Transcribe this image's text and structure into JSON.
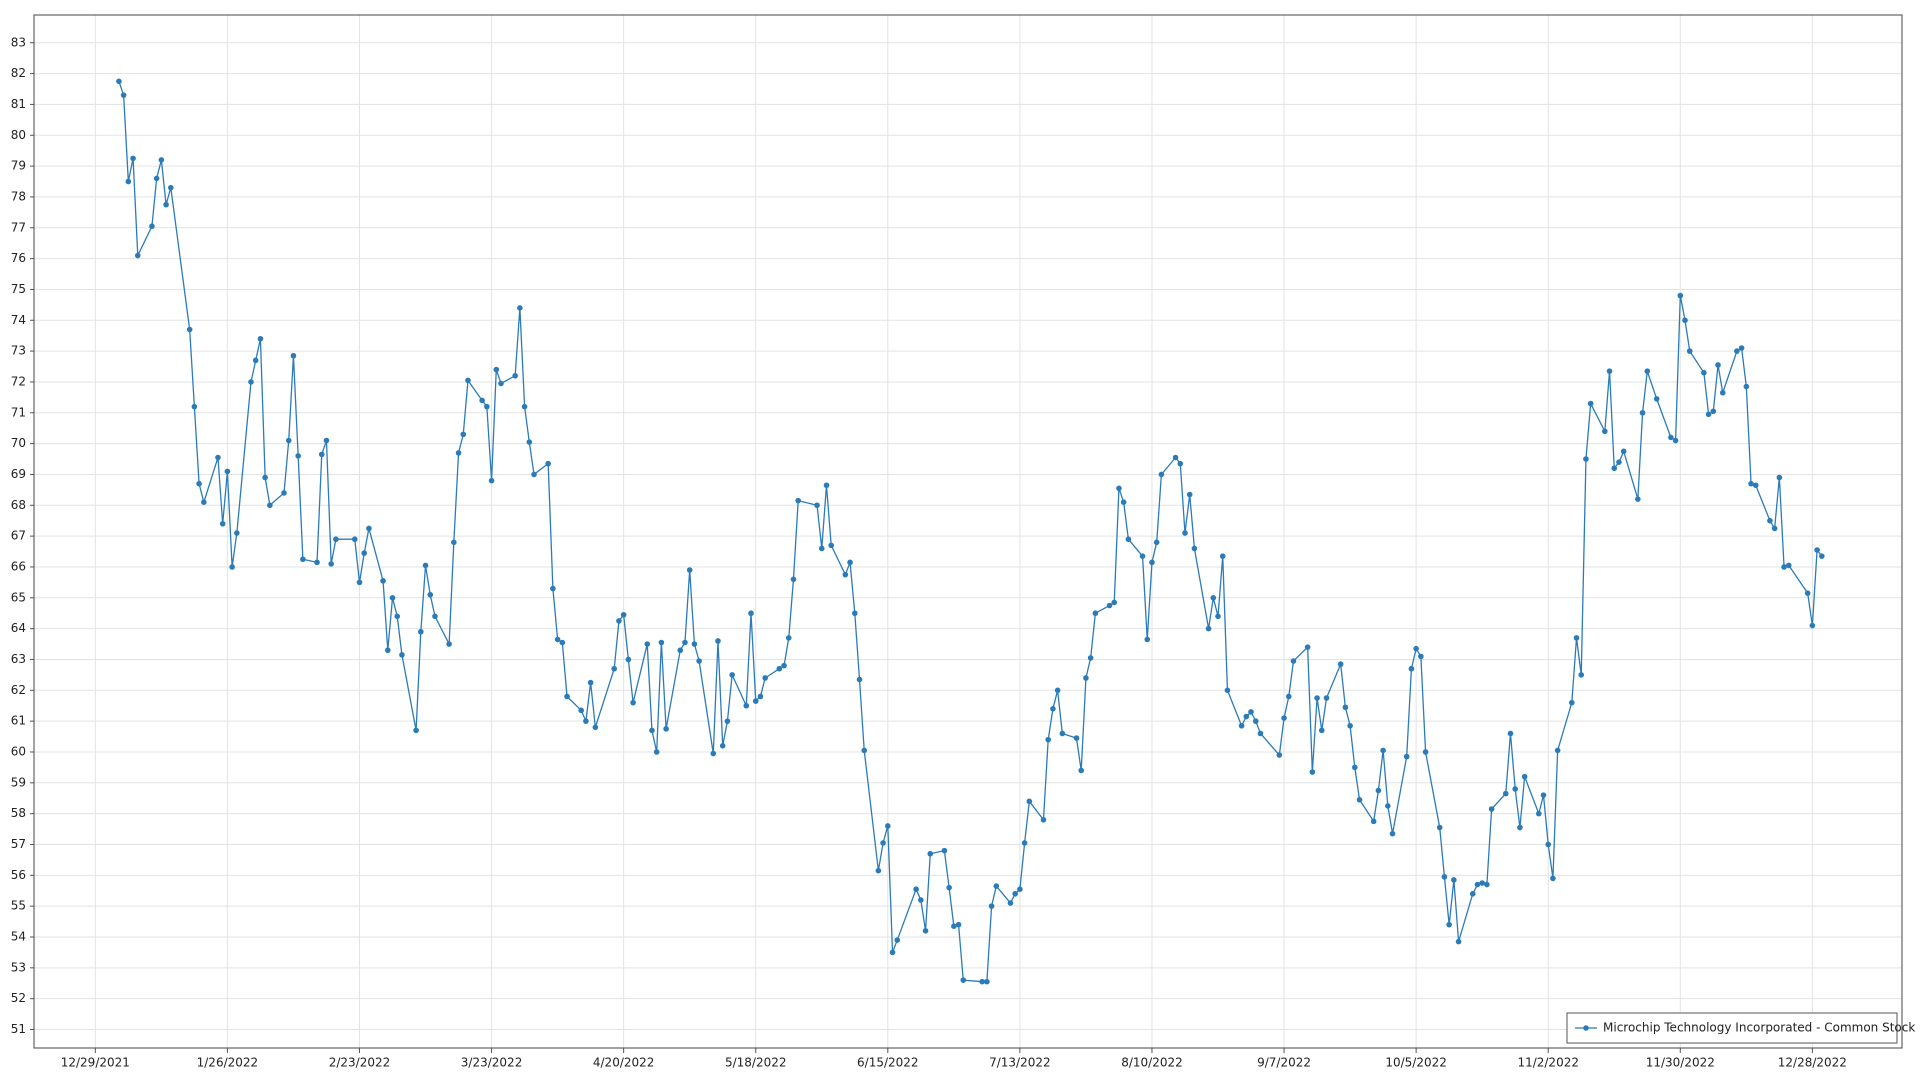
{
  "chart_data": {
    "type": "line",
    "x": [
      "1/3/2022",
      "1/4/2022",
      "1/5/2022",
      "1/6/2022",
      "1/7/2022",
      "1/10/2022",
      "1/11/2022",
      "1/12/2022",
      "1/13/2022",
      "1/14/2022",
      "1/18/2022",
      "1/19/2022",
      "1/20/2022",
      "1/21/2022",
      "1/24/2022",
      "1/25/2022",
      "1/26/2022",
      "1/27/2022",
      "1/28/2022",
      "1/31/2022",
      "2/1/2022",
      "2/2/2022",
      "2/3/2022",
      "2/4/2022",
      "2/7/2022",
      "2/8/2022",
      "2/9/2022",
      "2/10/2022",
      "2/11/2022",
      "2/14/2022",
      "2/15/2022",
      "2/16/2022",
      "2/17/2022",
      "2/18/2022",
      "2/22/2022",
      "2/23/2022",
      "2/24/2022",
      "2/25/2022",
      "2/28/2022",
      "3/1/2022",
      "3/2/2022",
      "3/3/2022",
      "3/4/2022",
      "3/7/2022",
      "3/8/2022",
      "3/9/2022",
      "3/10/2022",
      "3/11/2022",
      "3/14/2022",
      "3/15/2022",
      "3/16/2022",
      "3/17/2022",
      "3/18/2022",
      "3/21/2022",
      "3/22/2022",
      "3/23/2022",
      "3/24/2022",
      "3/25/2022",
      "3/28/2022",
      "3/29/2022",
      "3/30/2022",
      "3/31/2022",
      "4/1/2022",
      "4/4/2022",
      "4/5/2022",
      "4/6/2022",
      "4/7/2022",
      "4/8/2022",
      "4/11/2022",
      "4/12/2022",
      "4/13/2022",
      "4/14/2022",
      "4/18/2022",
      "4/19/2022",
      "4/20/2022",
      "4/21/2022",
      "4/22/2022",
      "4/25/2022",
      "4/26/2022",
      "4/27/2022",
      "4/28/2022",
      "4/29/2022",
      "5/2/2022",
      "5/3/2022",
      "5/4/2022",
      "5/5/2022",
      "5/6/2022",
      "5/9/2022",
      "5/10/2022",
      "5/11/2022",
      "5/12/2022",
      "5/13/2022",
      "5/16/2022",
      "5/17/2022",
      "5/18/2022",
      "5/19/2022",
      "5/20/2022",
      "5/23/2022",
      "5/24/2022",
      "5/25/2022",
      "5/26/2022",
      "5/27/2022",
      "5/31/2022",
      "6/1/2022",
      "6/2/2022",
      "6/3/2022",
      "6/6/2022",
      "6/7/2022",
      "6/8/2022",
      "6/9/2022",
      "6/10/2022",
      "6/13/2022",
      "6/14/2022",
      "6/15/2022",
      "6/16/2022",
      "6/17/2022",
      "6/21/2022",
      "6/22/2022",
      "6/23/2022",
      "6/24/2022",
      "6/27/2022",
      "6/28/2022",
      "6/29/2022",
      "6/30/2022",
      "7/1/2022",
      "7/5/2022",
      "7/6/2022",
      "7/7/2022",
      "7/8/2022",
      "7/11/2022",
      "7/12/2022",
      "7/13/2022",
      "7/14/2022",
      "7/15/2022",
      "7/18/2022",
      "7/19/2022",
      "7/20/2022",
      "7/21/2022",
      "7/22/2022",
      "7/25/2022",
      "7/26/2022",
      "7/27/2022",
      "7/28/2022",
      "7/29/2022",
      "8/1/2022",
      "8/2/2022",
      "8/3/2022",
      "8/4/2022",
      "8/5/2022",
      "8/8/2022",
      "8/9/2022",
      "8/10/2022",
      "8/11/2022",
      "8/12/2022",
      "8/15/2022",
      "8/16/2022",
      "8/17/2022",
      "8/18/2022",
      "8/19/2022",
      "8/22/2022",
      "8/23/2022",
      "8/24/2022",
      "8/25/2022",
      "8/26/2022",
      "8/29/2022",
      "8/30/2022",
      "8/31/2022",
      "9/1/2022",
      "9/2/2022",
      "9/6/2022",
      "9/7/2022",
      "9/8/2022",
      "9/9/2022",
      "9/12/2022",
      "9/13/2022",
      "9/14/2022",
      "9/15/2022",
      "9/16/2022",
      "9/19/2022",
      "9/20/2022",
      "9/21/2022",
      "9/22/2022",
      "9/23/2022",
      "9/26/2022",
      "9/27/2022",
      "9/28/2022",
      "9/29/2022",
      "9/30/2022",
      "10/3/2022",
      "10/4/2022",
      "10/5/2022",
      "10/6/2022",
      "10/7/2022",
      "10/10/2022",
      "10/11/2022",
      "10/12/2022",
      "10/13/2022",
      "10/14/2022",
      "10/17/2022",
      "10/18/2022",
      "10/19/2022",
      "10/20/2022",
      "10/21/2022",
      "10/24/2022",
      "10/25/2022",
      "10/26/2022",
      "10/27/2022",
      "10/28/2022",
      "10/31/2022",
      "11/1/2022",
      "11/2/2022",
      "11/3/2022",
      "11/4/2022",
      "11/7/2022",
      "11/8/2022",
      "11/9/2022",
      "11/10/2022",
      "11/11/2022",
      "11/14/2022",
      "11/15/2022",
      "11/16/2022",
      "11/17/2022",
      "11/18/2022",
      "11/21/2022",
      "11/22/2022",
      "11/23/2022",
      "11/25/2022",
      "11/28/2022",
      "11/29/2022",
      "11/30/2022",
      "12/1/2022",
      "12/2/2022",
      "12/5/2022",
      "12/6/2022",
      "12/7/2022",
      "12/8/2022",
      "12/9/2022",
      "12/12/2022",
      "12/13/2022",
      "12/14/2022",
      "12/15/2022",
      "12/16/2022",
      "12/19/2022",
      "12/20/2022",
      "12/21/2022",
      "12/22/2022",
      "12/23/2022",
      "12/27/2022",
      "12/28/2022",
      "12/29/2022",
      "12/30/2022"
    ],
    "series": [
      {
        "name": "Microchip Technology Incorporated - Common Stock",
        "color": "#2b7bb9",
        "values": [
          81.75,
          81.3,
          78.5,
          79.25,
          76.1,
          77.05,
          78.6,
          79.2,
          77.75,
          78.3,
          73.7,
          71.2,
          68.7,
          68.1,
          69.55,
          67.4,
          69.1,
          66.0,
          67.1,
          72.0,
          72.7,
          73.4,
          68.9,
          68.0,
          68.4,
          70.1,
          72.85,
          69.6,
          66.25,
          66.15,
          69.65,
          70.1,
          66.1,
          66.9,
          66.9,
          65.5,
          66.45,
          67.25,
          65.55,
          63.3,
          65.0,
          64.4,
          63.15,
          60.7,
          63.9,
          66.05,
          65.1,
          64.4,
          63.5,
          66.8,
          69.7,
          70.3,
          72.05,
          71.4,
          71.2,
          68.8,
          72.4,
          71.95,
          72.2,
          74.4,
          71.2,
          70.05,
          69.0,
          69.35,
          65.3,
          63.65,
          63.55,
          61.8,
          61.35,
          61.0,
          62.25,
          60.8,
          62.7,
          64.25,
          64.45,
          63.0,
          61.6,
          63.5,
          60.7,
          60.0,
          63.55,
          60.75,
          63.3,
          63.55,
          65.9,
          63.5,
          62.95,
          59.95,
          63.6,
          60.2,
          61.0,
          62.5,
          61.5,
          64.5,
          61.65,
          61.8,
          62.4,
          62.7,
          62.8,
          63.7,
          65.6,
          68.15,
          68.0,
          66.6,
          68.65,
          66.7,
          65.75,
          66.15,
          64.5,
          62.35,
          60.05,
          56.15,
          57.05,
          57.6,
          53.5,
          53.9,
          55.55,
          55.2,
          54.2,
          56.7,
          56.8,
          55.6,
          54.35,
          54.4,
          52.6,
          52.55,
          52.55,
          55.0,
          55.65,
          55.1,
          55.4,
          55.55,
          57.05,
          58.4,
          57.8,
          60.4,
          61.4,
          62.0,
          60.6,
          60.45,
          59.4,
          62.4,
          63.05,
          64.5,
          64.75,
          64.85,
          68.55,
          68.1,
          66.9,
          66.35,
          63.65,
          66.15,
          66.8,
          69.0,
          69.55,
          69.35,
          67.1,
          68.35,
          66.6,
          64.0,
          65.0,
          64.4,
          66.35,
          62.0,
          60.85,
          61.15,
          61.3,
          61.0,
          60.6,
          59.9,
          61.1,
          61.8,
          62.95,
          63.4,
          59.35,
          61.75,
          60.7,
          61.75,
          62.85,
          61.45,
          60.85,
          59.5,
          58.45,
          57.75,
          58.75,
          60.05,
          58.25,
          57.35,
          59.85,
          62.7,
          63.35,
          63.1,
          60.0,
          57.55,
          55.95,
          54.4,
          55.85,
          53.85,
          55.4,
          55.7,
          55.75,
          55.7,
          58.15,
          58.65,
          60.6,
          58.8,
          57.55,
          59.2,
          58.0,
          58.6,
          57.0,
          55.9,
          60.05,
          61.6,
          63.7,
          62.5,
          69.5,
          71.3,
          70.4,
          72.35,
          69.2,
          69.4,
          69.75,
          68.2,
          71.0,
          72.35,
          71.45,
          70.2,
          70.1,
          74.8,
          74.0,
          73.0,
          72.3,
          70.95,
          71.05,
          72.55,
          71.65,
          73.0,
          73.1,
          71.85,
          68.7,
          68.65,
          67.5,
          67.25,
          68.9,
          66.0,
          66.05,
          65.15,
          64.1,
          66.55,
          66.35
        ]
      }
    ],
    "xlim": [
      "12/16/2021",
      "1/16/2023"
    ],
    "xticks": [
      "12/29/2021",
      "1/26/2022",
      "2/23/2022",
      "3/23/2022",
      "4/20/2022",
      "5/18/2022",
      "6/15/2022",
      "7/13/2022",
      "8/10/2022",
      "9/7/2022",
      "10/5/2022",
      "11/2/2022",
      "11/30/2022",
      "12/28/2022"
    ],
    "ylim": [
      50.4,
      83.9
    ],
    "yticks": [
      51,
      52,
      53,
      54,
      55,
      56,
      57,
      58,
      59,
      60,
      61,
      62,
      63,
      64,
      65,
      66,
      67,
      68,
      69,
      70,
      71,
      72,
      73,
      74,
      75,
      76,
      77,
      78,
      79,
      80,
      81,
      82,
      83
    ],
    "grid": true,
    "legend": "lower-right"
  }
}
